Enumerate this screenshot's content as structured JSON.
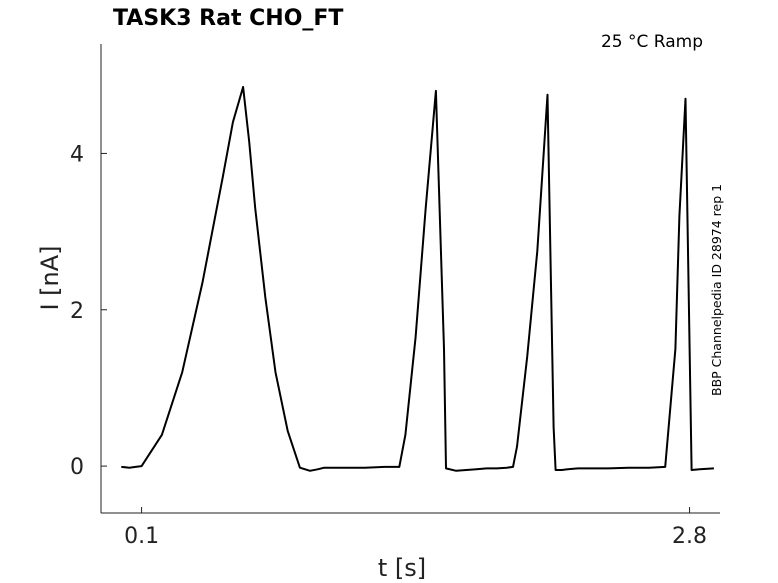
{
  "chart_data": {
    "type": "line",
    "title": "TASK3  Rat  CHO_FT",
    "subtitle": "25 °C  Ramp",
    "side_note": "BBP Channelpedia ID 28974 rep 1",
    "xlabel": "t [s]",
    "ylabel": "I [nA]",
    "xlim": [
      -0.1,
      2.95
    ],
    "ylim": [
      -0.6,
      5.4
    ],
    "xticks": [
      {
        "value": 0.1,
        "label": "0.1"
      },
      {
        "value": 2.8,
        "label": "2.8"
      }
    ],
    "yticks": [
      {
        "value": 0,
        "label": "0"
      },
      {
        "value": 2,
        "label": "2"
      },
      {
        "value": 4,
        "label": "4"
      }
    ],
    "grid": false,
    "series": [
      {
        "x": [
          0.0,
          0.04,
          0.07,
          0.1,
          0.2,
          0.3,
          0.4,
          0.5,
          0.55,
          0.6,
          0.63,
          0.66,
          0.71,
          0.76,
          0.82,
          0.88,
          0.93,
          0.97,
          1.0,
          1.05,
          1.1,
          1.2,
          1.3,
          1.37,
          1.4,
          1.45,
          1.5,
          1.55,
          1.59,
          1.6,
          1.65,
          1.7,
          1.75,
          1.8,
          1.85,
          1.9,
          1.93,
          1.95,
          2.0,
          2.05,
          2.1,
          2.13,
          2.14,
          2.17,
          2.2,
          2.25,
          2.3,
          2.4,
          2.5,
          2.6,
          2.68,
          2.73,
          2.75,
          2.78,
          2.81,
          2.85,
          2.92
        ],
        "y": [
          -0.01,
          -0.02,
          -0.01,
          0.0,
          0.4,
          1.2,
          2.35,
          3.7,
          4.4,
          4.85,
          4.15,
          3.3,
          2.15,
          1.2,
          0.45,
          -0.02,
          -0.06,
          -0.04,
          -0.02,
          -0.02,
          -0.02,
          -0.02,
          -0.01,
          -0.01,
          0.4,
          1.65,
          3.3,
          4.8,
          1.5,
          -0.03,
          -0.06,
          -0.05,
          -0.04,
          -0.03,
          -0.03,
          -0.02,
          -0.01,
          0.25,
          1.4,
          2.75,
          4.75,
          0.5,
          -0.05,
          -0.05,
          -0.04,
          -0.03,
          -0.03,
          -0.03,
          -0.02,
          -0.02,
          -0.01,
          1.5,
          3.2,
          4.7,
          -0.05,
          -0.04,
          -0.03
        ]
      }
    ]
  }
}
